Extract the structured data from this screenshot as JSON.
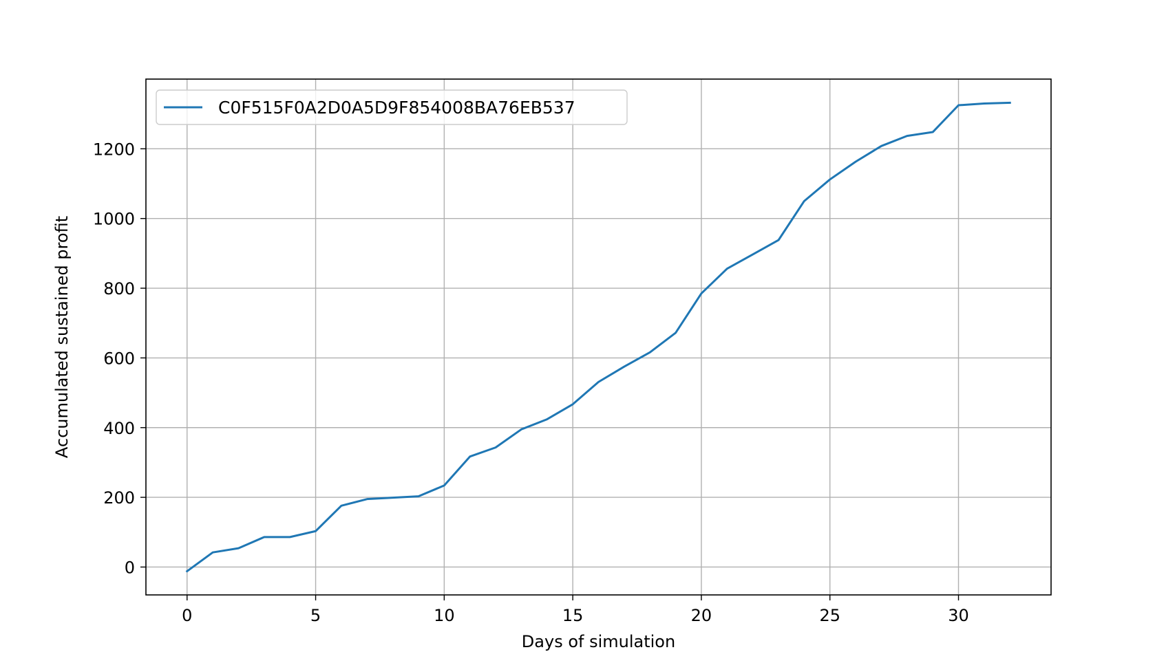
{
  "chart_data": {
    "type": "line",
    "title": "",
    "xlabel": "Days of simulation",
    "ylabel": "Accumulated sustained profit",
    "xlim": [
      -1.6,
      33.6
    ],
    "ylim": [
      -80,
      1400
    ],
    "xticks": [
      0,
      5,
      10,
      15,
      20,
      25,
      30
    ],
    "yticks": [
      0,
      200,
      400,
      600,
      800,
      1000,
      1200
    ],
    "grid": true,
    "legend_position": "upper-left",
    "series": [
      {
        "name": "C0F515F0A2D0A5D9F854008BA76EB537",
        "color": "#1f77b4",
        "x": [
          0,
          1,
          2,
          3,
          4,
          5,
          6,
          7,
          8,
          9,
          10,
          11,
          12,
          13,
          14,
          15,
          16,
          17,
          18,
          19,
          20,
          21,
          22,
          23,
          24,
          25,
          26,
          27,
          28,
          29,
          30,
          31,
          32
        ],
        "y": [
          -12,
          42,
          54,
          86,
          86,
          103,
          176,
          195,
          199,
          203,
          234,
          317,
          343,
          395,
          424,
          467,
          531,
          575,
          616,
          672,
          785,
          856,
          897,
          938,
          1050,
          1112,
          1163,
          1208,
          1237,
          1248,
          1325,
          1330,
          1332
        ]
      }
    ]
  }
}
